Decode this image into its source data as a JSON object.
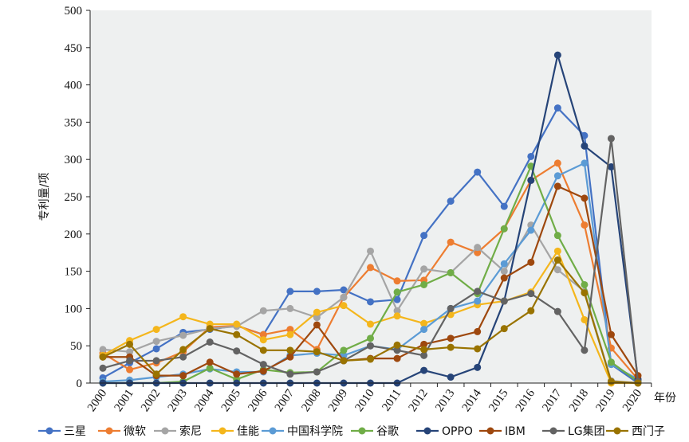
{
  "chart_data": {
    "type": "line",
    "title": "",
    "xlabel": "年份",
    "ylabel": "专利量/项",
    "ylim": [
      0,
      500
    ],
    "yticks": [
      0,
      50,
      100,
      150,
      200,
      250,
      300,
      350,
      400,
      450,
      500
    ],
    "grid": false,
    "legend_position": "bottom",
    "x": [
      "2000",
      "2001",
      "2002",
      "2003",
      "2004",
      "2005",
      "2006",
      "2007",
      "2008",
      "2009",
      "2010",
      "2011",
      "2012",
      "2013",
      "2014",
      "2015",
      "2016",
      "2017",
      "2018",
      "2019",
      "2020"
    ],
    "series": [
      {
        "name": "三星",
        "color": "#4472C4",
        "values": [
          7,
          27,
          46,
          68,
          72,
          77,
          65,
          123,
          123,
          125,
          109,
          112,
          198,
          244,
          283,
          237,
          304,
          369,
          332,
          25,
          0
        ]
      },
      {
        "name": "微软",
        "color": "#ED7D31",
        "values": [
          40,
          18,
          27,
          42,
          75,
          77,
          65,
          72,
          45,
          115,
          155,
          137,
          138,
          189,
          175,
          207,
          272,
          295,
          212,
          47,
          5
        ]
      },
      {
        "name": "索尼",
        "color": "#A5A5A5",
        "values": [
          45,
          42,
          56,
          64,
          73,
          76,
          97,
          100,
          88,
          115,
          177,
          97,
          153,
          148,
          182,
          150,
          212,
          152,
          123,
          3,
          0
        ]
      },
      {
        "name": "佳能",
        "color": "#F4B61C",
        "values": [
          37,
          57,
          72,
          89,
          79,
          79,
          58,
          65,
          95,
          104,
          79,
          90,
          80,
          92,
          105,
          110,
          122,
          177,
          85,
          0,
          0
        ]
      },
      {
        "name": "中国科学院",
        "color": "#5B9BD5",
        "values": [
          2,
          4,
          8,
          12,
          19,
          15,
          15,
          37,
          40,
          37,
          50,
          45,
          72,
          100,
          110,
          160,
          205,
          278,
          295,
          25,
          5
        ]
      },
      {
        "name": "谷歌",
        "color": "#70AD47",
        "values": [
          0,
          0,
          0,
          2,
          20,
          5,
          18,
          14,
          15,
          44,
          60,
          122,
          132,
          148,
          120,
          207,
          291,
          198,
          132,
          28,
          2
        ]
      },
      {
        "name": "OPPO",
        "color": "#264478",
        "values": [
          0,
          0,
          0,
          0,
          0,
          0,
          0,
          0,
          0,
          0,
          0,
          0,
          17,
          8,
          21,
          110,
          272,
          440,
          318,
          290,
          5
        ]
      },
      {
        "name": "IBM",
        "color": "#9E480E",
        "values": [
          35,
          35,
          10,
          10,
          28,
          12,
          16,
          35,
          78,
          30,
          33,
          33,
          52,
          60,
          69,
          141,
          162,
          264,
          248,
          65,
          10
        ]
      },
      {
        "name": "LG集团",
        "color": "#636363",
        "values": [
          20,
          30,
          30,
          35,
          55,
          43,
          25,
          12,
          15,
          30,
          50,
          44,
          37,
          100,
          123,
          110,
          120,
          96,
          44,
          328,
          2
        ]
      },
      {
        "name": "西门子",
        "color": "#997300",
        "values": [
          35,
          52,
          12,
          45,
          73,
          65,
          44,
          44,
          42,
          30,
          32,
          51,
          45,
          48,
          46,
          73,
          97,
          165,
          121,
          2,
          0
        ]
      }
    ]
  }
}
